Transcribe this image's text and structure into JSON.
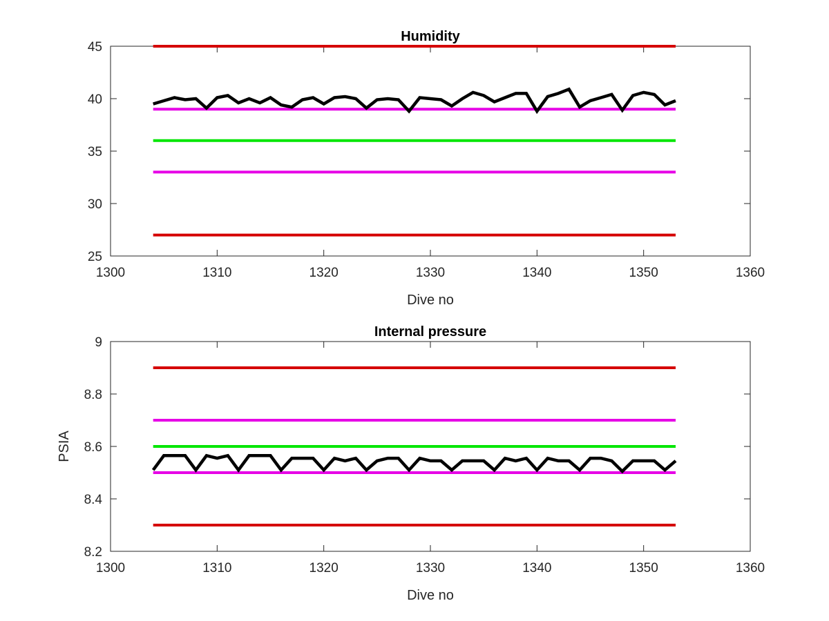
{
  "chart_data": [
    {
      "type": "line",
      "title": "Humidity",
      "xlabel": "Dive no",
      "ylabel": "",
      "xlim": [
        1300,
        1360
      ],
      "ylim": [
        25,
        45
      ],
      "xticks": [
        1300,
        1310,
        1320,
        1330,
        1340,
        1350,
        1360
      ],
      "yticks": [
        25,
        30,
        35,
        40,
        45
      ],
      "grid": false,
      "series": [
        {
          "color": "#d50000",
          "x": [
            1304,
            1353
          ],
          "y": [
            45,
            45
          ]
        },
        {
          "color": "#d50000",
          "x": [
            1304,
            1353
          ],
          "y": [
            27,
            27
          ]
        },
        {
          "color": "#e600e6",
          "x": [
            1304,
            1353
          ],
          "y": [
            39,
            39
          ]
        },
        {
          "color": "#e600e6",
          "x": [
            1304,
            1353
          ],
          "y": [
            33,
            33
          ]
        },
        {
          "color": "#00e600",
          "x": [
            1304,
            1353
          ],
          "y": [
            36,
            36
          ]
        },
        {
          "color": "#000000",
          "x": [
            1304,
            1305,
            1306,
            1307,
            1308,
            1309,
            1310,
            1311,
            1312,
            1313,
            1314,
            1315,
            1316,
            1317,
            1318,
            1319,
            1320,
            1321,
            1322,
            1323,
            1324,
            1325,
            1326,
            1327,
            1328,
            1329,
            1330,
            1331,
            1332,
            1333,
            1334,
            1335,
            1336,
            1337,
            1338,
            1339,
            1340,
            1341,
            1342,
            1343,
            1344,
            1345,
            1346,
            1347,
            1348,
            1349,
            1350,
            1351,
            1352,
            1353
          ],
          "y": [
            39.5,
            39.8,
            40.1,
            39.9,
            40.0,
            39.1,
            40.1,
            40.3,
            39.6,
            40.0,
            39.6,
            40.1,
            39.4,
            39.2,
            39.9,
            40.1,
            39.5,
            40.1,
            40.2,
            40.0,
            39.1,
            39.9,
            40.0,
            39.9,
            38.8,
            40.1,
            40.0,
            39.9,
            39.3,
            40.0,
            40.6,
            40.3,
            39.7,
            40.1,
            40.5,
            40.5,
            38.8,
            40.2,
            40.5,
            40.9,
            39.2,
            39.8,
            40.1,
            40.4,
            38.9,
            40.3,
            40.6,
            40.4,
            39.4,
            39.8
          ]
        }
      ]
    },
    {
      "type": "line",
      "title": "Internal pressure",
      "xlabel": "Dive no",
      "ylabel": "PSIA",
      "xlim": [
        1300,
        1360
      ],
      "ylim": [
        8.2,
        9
      ],
      "xticks": [
        1300,
        1310,
        1320,
        1330,
        1340,
        1350,
        1360
      ],
      "yticks": [
        8.2,
        8.4,
        8.6,
        8.8,
        9
      ],
      "ytick_labels": [
        "8.2",
        "8.4",
        "8.6",
        "8.8",
        "9"
      ],
      "grid": false,
      "series": [
        {
          "color": "#d50000",
          "x": [
            1304,
            1353
          ],
          "y": [
            8.9,
            8.9
          ]
        },
        {
          "color": "#d50000",
          "x": [
            1304,
            1353
          ],
          "y": [
            8.3,
            8.3
          ]
        },
        {
          "color": "#e600e6",
          "x": [
            1304,
            1353
          ],
          "y": [
            8.7,
            8.7
          ]
        },
        {
          "color": "#e600e6",
          "x": [
            1304,
            1353
          ],
          "y": [
            8.5,
            8.5
          ]
        },
        {
          "color": "#00e600",
          "x": [
            1304,
            1353
          ],
          "y": [
            8.6,
            8.6
          ]
        },
        {
          "color": "#000000",
          "x": [
            1304,
            1305,
            1306,
            1307,
            1308,
            1309,
            1310,
            1311,
            1312,
            1313,
            1314,
            1315,
            1316,
            1317,
            1318,
            1319,
            1320,
            1321,
            1322,
            1323,
            1324,
            1325,
            1326,
            1327,
            1328,
            1329,
            1330,
            1331,
            1332,
            1333,
            1334,
            1335,
            1336,
            1337,
            1338,
            1339,
            1340,
            1341,
            1342,
            1343,
            1344,
            1345,
            1346,
            1347,
            1348,
            1349,
            1350,
            1351,
            1352,
            1353
          ],
          "y": [
            8.51,
            8.565,
            8.565,
            8.565,
            8.51,
            8.565,
            8.555,
            8.565,
            8.51,
            8.565,
            8.565,
            8.565,
            8.51,
            8.555,
            8.555,
            8.555,
            8.51,
            8.555,
            8.545,
            8.555,
            8.51,
            8.545,
            8.555,
            8.555,
            8.51,
            8.555,
            8.545,
            8.545,
            8.51,
            8.545,
            8.545,
            8.545,
            8.51,
            8.555,
            8.545,
            8.555,
            8.51,
            8.555,
            8.545,
            8.545,
            8.51,
            8.555,
            8.555,
            8.545,
            8.505,
            8.545,
            8.545,
            8.545,
            8.51,
            8.545
          ]
        }
      ]
    }
  ]
}
